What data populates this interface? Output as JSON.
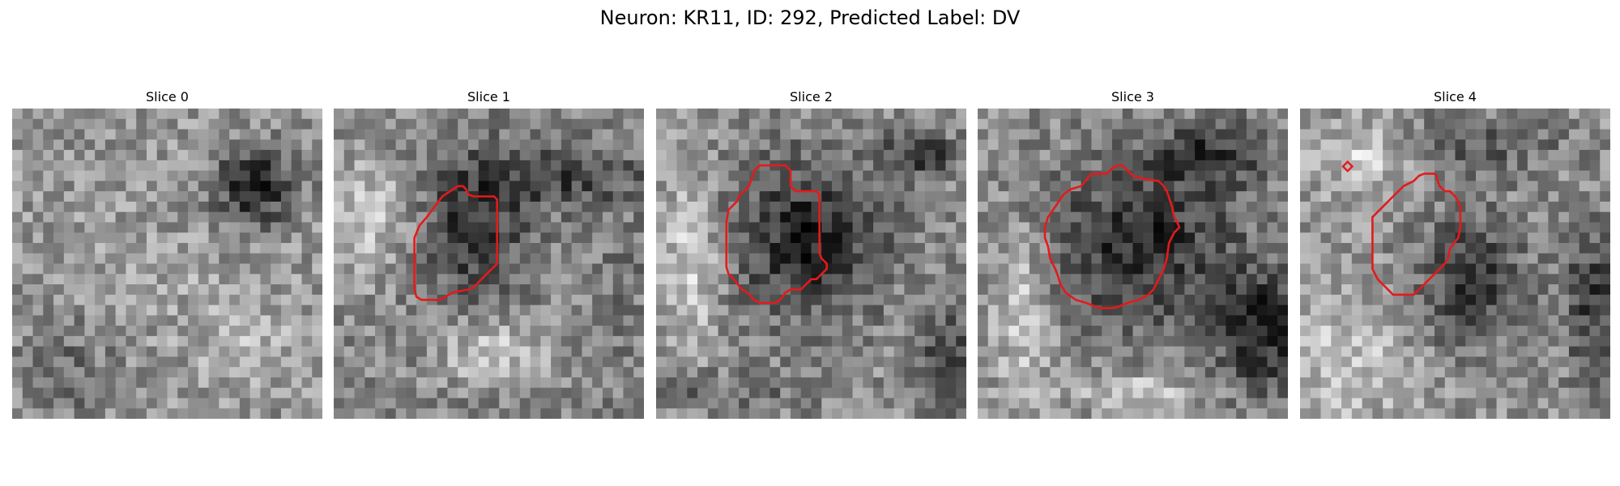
{
  "figure": {
    "title": "Neuron: KR11, ID: 292, Predicted Label: DV"
  },
  "panels": [
    {
      "title": "Slice 0",
      "has_outline": false,
      "outline_color": "#e41a1c"
    },
    {
      "title": "Slice 1",
      "has_outline": true,
      "outline_color": "#e41a1c"
    },
    {
      "title": "Slice 2",
      "has_outline": true,
      "outline_color": "#e41a1c"
    },
    {
      "title": "Slice 3",
      "has_outline": true,
      "outline_color": "#e41a1c"
    },
    {
      "title": "Slice 4",
      "has_outline": true,
      "outline_color": "#e41a1c"
    }
  ],
  "colormap": "gray"
}
